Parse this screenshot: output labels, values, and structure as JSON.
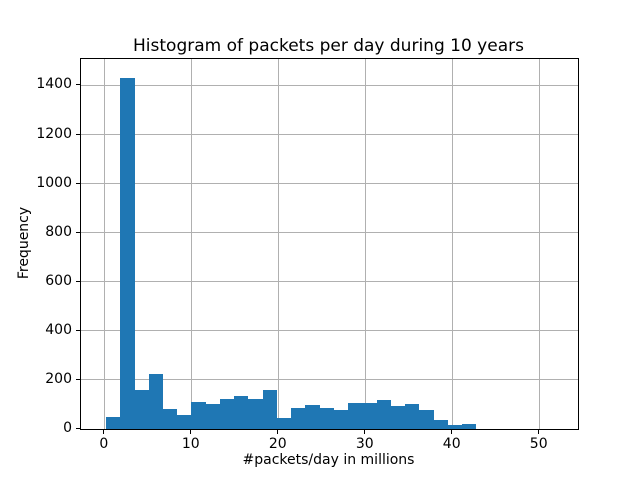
{
  "chart_data": {
    "type": "histogram",
    "title": "Histogram of packets per day during 10 years",
    "xlabel": "#packets/day in millions",
    "ylabel": "Frequency",
    "bin_start": 0.2,
    "bin_width": 1.637,
    "values": [
      50,
      1430,
      160,
      225,
      80,
      58,
      110,
      100,
      123,
      135,
      124,
      157,
      45,
      86,
      98,
      84,
      78,
      105,
      108,
      120,
      92,
      100,
      78,
      35,
      15,
      22
    ],
    "xticks": [
      0,
      10,
      20,
      30,
      40,
      50
    ],
    "yticks": [
      0,
      200,
      400,
      600,
      800,
      1000,
      1200,
      1400
    ],
    "xlim": [
      -2.68,
      54.46
    ],
    "ylim": [
      0,
      1508
    ],
    "grid": true,
    "legend": false,
    "bar_color": "#1f77b4",
    "grid_color": "#b0b0b0",
    "axis_color": "#000000",
    "background_color": "#ffffff"
  }
}
